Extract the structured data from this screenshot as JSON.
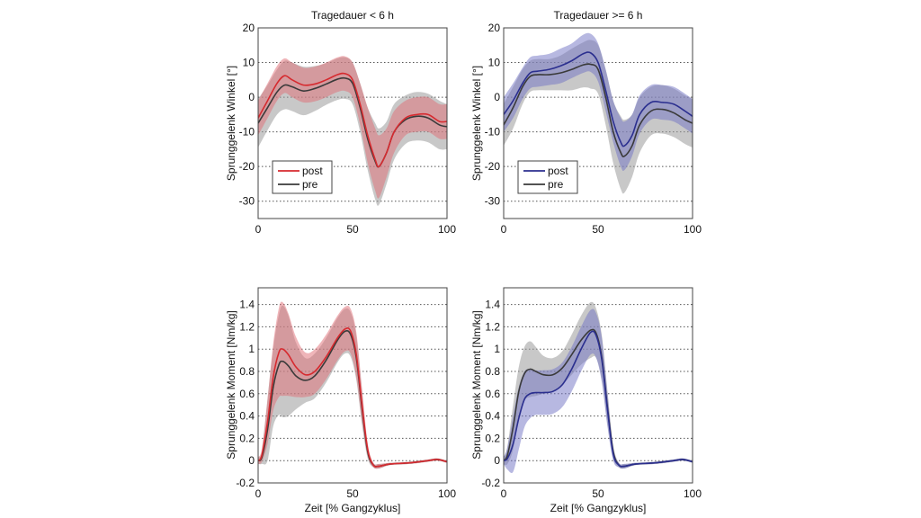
{
  "colors": {
    "post_left": "#d62a2f",
    "post_right": "#2b2f8f",
    "pre": "#3a3a3a",
    "band_pre": "#9a9a9a",
    "band_post_left": "#e06b73",
    "band_post_right": "#6f72c4",
    "grid": "#555555"
  },
  "chart_data": [
    {
      "type": "line",
      "panel": "top-left",
      "title": "Tragedauer < 6 h",
      "xlabel": "",
      "ylabel": "Sprunggelenk Winkel [°]",
      "xlim": [
        0,
        100
      ],
      "ylim": [
        -35,
        20
      ],
      "xticks": [
        "0",
        "50",
        "100"
      ],
      "yticks": [
        "20",
        "10",
        "0",
        "-10",
        "-20",
        "-30"
      ],
      "ytick_values": [
        20,
        10,
        0,
        -10,
        -20,
        -30
      ],
      "grid": "horizontal dotted",
      "legend": {
        "position": "bottom-left",
        "entries": [
          "post",
          "pre"
        ]
      },
      "x": [
        0,
        5,
        10,
        14,
        18,
        24,
        30,
        36,
        42,
        46,
        50,
        54,
        58,
        62,
        64,
        68,
        72,
        78,
        84,
        90,
        96,
        100
      ],
      "series": [
        {
          "name": "post",
          "color_key": "post_left",
          "values": [
            -6,
            -1,
            4,
            6.2,
            5,
            3.5,
            3.8,
            5,
            6.5,
            6.8,
            5,
            -2,
            -11,
            -18,
            -20,
            -16,
            -10,
            -6,
            -5,
            -5,
            -7,
            -7
          ],
          "sd": [
            5,
            5,
            5,
            5,
            5,
            5,
            5,
            5,
            5,
            5,
            5,
            6,
            8,
            9,
            9,
            7,
            6,
            5,
            5,
            5,
            5,
            5
          ]
        },
        {
          "name": "pre",
          "color_key": "pre",
          "values": [
            -7.5,
            -3,
            1.5,
            3.5,
            3,
            1.8,
            2.5,
            3.8,
            5.2,
            5.5,
            4,
            -3,
            -12,
            -18.5,
            -20,
            -16,
            -10,
            -6.5,
            -5.5,
            -6,
            -8,
            -8.5
          ],
          "sd": [
            7,
            6.5,
            6.5,
            7,
            7,
            7,
            6.5,
            6,
            6,
            6,
            6,
            7,
            9,
            11,
            11,
            9,
            8,
            7,
            7,
            7,
            7,
            6.5
          ]
        }
      ]
    },
    {
      "type": "line",
      "panel": "top-right",
      "title": "Tragedauer >= 6 h",
      "xlabel": "",
      "ylabel": "Sprunggelenk Winkel [°]",
      "xlim": [
        0,
        100
      ],
      "ylim": [
        -35,
        20
      ],
      "xticks": [
        "0",
        "50",
        "100"
      ],
      "yticks": [
        "20",
        "10",
        "0",
        "-10",
        "-20",
        "-30"
      ],
      "ytick_values": [
        20,
        10,
        0,
        -10,
        -20,
        -30
      ],
      "grid": "horizontal dotted",
      "legend": {
        "position": "bottom-left",
        "entries": [
          "post",
          "pre"
        ]
      },
      "x": [
        0,
        5,
        10,
        14,
        18,
        24,
        30,
        36,
        42,
        46,
        50,
        54,
        58,
        62,
        64,
        68,
        72,
        78,
        84,
        90,
        96,
        100
      ],
      "series": [
        {
          "name": "post",
          "color_key": "post_right",
          "values": [
            -5,
            -1,
            4,
            7,
            7.5,
            8,
            9,
            10.5,
            12.5,
            12.8,
            10,
            2,
            -7,
            -13,
            -14,
            -11,
            -5,
            -1.5,
            -1.5,
            -2,
            -4,
            -5.5
          ],
          "sd": [
            5,
            5,
            4.5,
            4.5,
            4.5,
            4.5,
            5,
            5,
            5.5,
            5.5,
            5.5,
            6,
            6,
            7,
            7,
            6,
            5.5,
            5,
            5,
            5,
            5,
            5
          ]
        },
        {
          "name": "pre",
          "color_key": "pre",
          "values": [
            -8,
            -3,
            3,
            6,
            6.5,
            6.5,
            7,
            8,
            9.3,
            9.5,
            8,
            0,
            -10,
            -16,
            -17,
            -14,
            -8,
            -4,
            -3.5,
            -4.5,
            -6.5,
            -7.5
          ],
          "sd": [
            6,
            6,
            5,
            4.5,
            4.5,
            4.5,
            5,
            6,
            6.5,
            7,
            7,
            8,
            9,
            10.5,
            10.5,
            9,
            8,
            7,
            7,
            7,
            7,
            7
          ]
        }
      ]
    },
    {
      "type": "line",
      "panel": "bottom-left",
      "title": "",
      "xlabel": "Zeit [% Gangzyklus]",
      "ylabel": "Sprunggelenk Moment [Nm/kg]",
      "xlim": [
        0,
        100
      ],
      "ylim": [
        -0.2,
        1.55
      ],
      "xticks": [
        "0",
        "50",
        "100"
      ],
      "yticks": [
        "1.4",
        "1.2",
        "1",
        "0.8",
        "0.6",
        "0.4",
        "0.2",
        "0",
        "-0.2"
      ],
      "ytick_values": [
        1.4,
        1.2,
        1.0,
        0.8,
        0.6,
        0.4,
        0.2,
        0,
        -0.2
      ],
      "grid": "horizontal dotted",
      "x": [
        0,
        2,
        5,
        8,
        11,
        13,
        16,
        20,
        25,
        30,
        36,
        42,
        46,
        49,
        52,
        55,
        58,
        61,
        64,
        70,
        80,
        90,
        95,
        100
      ],
      "series": [
        {
          "name": "post",
          "color_key": "post_left",
          "values": [
            0.0,
            0.05,
            0.35,
            0.75,
            0.97,
            1.0,
            0.95,
            0.84,
            0.77,
            0.8,
            0.93,
            1.1,
            1.18,
            1.16,
            0.95,
            0.5,
            0.1,
            -0.04,
            -0.05,
            -0.03,
            -0.02,
            0.0,
            0.01,
            -0.01
          ],
          "sd": [
            0.03,
            0.06,
            0.2,
            0.3,
            0.4,
            0.42,
            0.37,
            0.27,
            0.2,
            0.2,
            0.2,
            0.2,
            0.2,
            0.2,
            0.2,
            0.15,
            0.06,
            0.02,
            0.02,
            0.01,
            0.01,
            0.01,
            0.01,
            0.01
          ]
        },
        {
          "name": "pre",
          "color_key": "pre",
          "values": [
            0.0,
            0.03,
            0.28,
            0.66,
            0.86,
            0.89,
            0.85,
            0.76,
            0.72,
            0.76,
            0.9,
            1.08,
            1.16,
            1.13,
            0.92,
            0.47,
            0.08,
            -0.04,
            -0.05,
            -0.03,
            -0.02,
            0.0,
            0.01,
            -0.01
          ],
          "sd": [
            0.03,
            0.06,
            0.28,
            0.35,
            0.45,
            0.5,
            0.45,
            0.3,
            0.2,
            0.2,
            0.2,
            0.2,
            0.2,
            0.2,
            0.2,
            0.15,
            0.06,
            0.02,
            0.02,
            0.01,
            0.01,
            0.01,
            0.01,
            0.01
          ]
        }
      ]
    },
    {
      "type": "line",
      "panel": "bottom-right",
      "title": "",
      "xlabel": "Zeit [% Gangzyklus]",
      "ylabel": "Sprunggelenk Moment [Nm/kg]",
      "xlim": [
        0,
        100
      ],
      "ylim": [
        -0.2,
        1.55
      ],
      "xticks": [
        "0",
        "50",
        "100"
      ],
      "yticks": [
        "1.4",
        "1.2",
        "1",
        "0.8",
        "0.6",
        "0.4",
        "0.2",
        "0",
        "-0.2"
      ],
      "ytick_values": [
        1.4,
        1.2,
        1.0,
        0.8,
        0.6,
        0.4,
        0.2,
        0,
        -0.2
      ],
      "grid": "horizontal dotted",
      "x": [
        0,
        2,
        5,
        8,
        11,
        14,
        17,
        21,
        26,
        31,
        36,
        41,
        46,
        49,
        52,
        55,
        58,
        61,
        64,
        70,
        80,
        90,
        95,
        100
      ],
      "series": [
        {
          "name": "post",
          "color_key": "post_right",
          "values": [
            0.0,
            0.02,
            0.15,
            0.38,
            0.55,
            0.6,
            0.61,
            0.61,
            0.62,
            0.68,
            0.82,
            1.0,
            1.15,
            1.12,
            0.9,
            0.45,
            0.06,
            -0.04,
            -0.05,
            -0.03,
            -0.02,
            0.0,
            0.01,
            -0.01
          ],
          "sd": [
            0.03,
            0.1,
            0.25,
            0.28,
            0.25,
            0.22,
            0.2,
            0.2,
            0.2,
            0.2,
            0.2,
            0.2,
            0.2,
            0.2,
            0.2,
            0.15,
            0.06,
            0.02,
            0.02,
            0.01,
            0.01,
            0.01,
            0.01,
            0.01
          ]
        },
        {
          "name": "pre",
          "color_key": "pre",
          "values": [
            0.0,
            0.05,
            0.3,
            0.62,
            0.78,
            0.82,
            0.8,
            0.77,
            0.77,
            0.83,
            0.95,
            1.08,
            1.17,
            1.14,
            0.92,
            0.47,
            0.08,
            -0.04,
            -0.05,
            -0.03,
            -0.02,
            0.0,
            0.01,
            -0.01
          ],
          "sd": [
            0.03,
            0.08,
            0.2,
            0.22,
            0.24,
            0.25,
            0.22,
            0.17,
            0.15,
            0.15,
            0.18,
            0.22,
            0.25,
            0.22,
            0.2,
            0.15,
            0.06,
            0.02,
            0.02,
            0.01,
            0.01,
            0.01,
            0.01,
            0.01
          ]
        }
      ]
    }
  ]
}
